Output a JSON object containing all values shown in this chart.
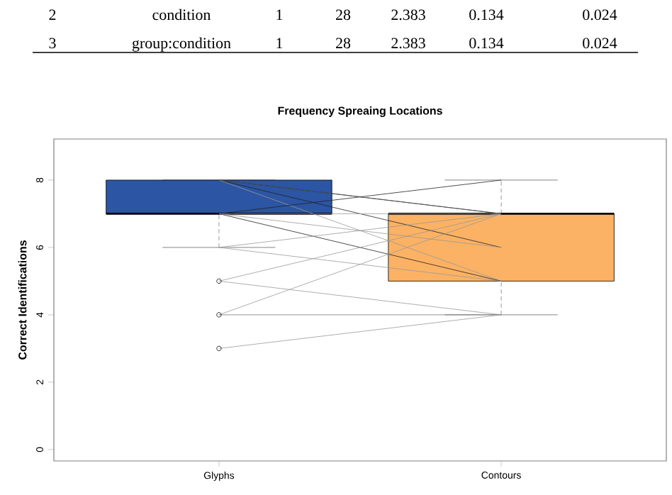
{
  "chart_data": {
    "type": "box",
    "title": "Frequency Spreaing Locations",
    "ylabel": "Correct Identifications",
    "categories": [
      "Glyphs",
      "Contours"
    ],
    "ylim": [
      -0.34,
      9.22
    ],
    "yticks": [
      0,
      2,
      4,
      6,
      8
    ],
    "boxes": [
      {
        "low": 6,
        "q1": 7,
        "median": 7,
        "q3": 8,
        "high": 8,
        "outliers": [
          5,
          4,
          3
        ]
      },
      {
        "low": 4,
        "q1": 5,
        "median": 7,
        "q3": 7,
        "high": 8
      }
    ],
    "colors": [
      "#2c55a3",
      "#fbb264"
    ],
    "series": [
      {
        "type": "line",
        "color": "#222222",
        "values": [
          8,
          7
        ]
      },
      {
        "type": "line",
        "color": "#222222",
        "values": [
          8,
          6
        ]
      },
      {
        "type": "line",
        "color": "#999999",
        "values": [
          8,
          5
        ]
      },
      {
        "type": "line",
        "color": "#555555",
        "values": [
          8,
          7
        ]
      },
      {
        "type": "line",
        "color": "#222222",
        "values": [
          7,
          8
        ]
      },
      {
        "type": "line",
        "color": "#222222",
        "values": [
          7,
          5
        ]
      },
      {
        "type": "line",
        "color": "#999999",
        "values": [
          7,
          6
        ]
      },
      {
        "type": "line",
        "color": "#999999",
        "values": [
          7,
          7
        ]
      },
      {
        "type": "line",
        "color": "#999999",
        "values": [
          6,
          7
        ]
      },
      {
        "type": "line",
        "color": "#999999",
        "values": [
          6,
          5
        ]
      },
      {
        "type": "line",
        "color": "#999999",
        "values": [
          5,
          7
        ]
      },
      {
        "type": "line",
        "color": "#999999",
        "values": [
          5,
          4
        ]
      },
      {
        "type": "line",
        "color": "#999999",
        "values": [
          4,
          7
        ]
      },
      {
        "type": "line",
        "color": "#777777",
        "values": [
          4,
          4
        ]
      },
      {
        "type": "line",
        "color": "#999999",
        "values": [
          3,
          4
        ]
      }
    ],
    "annotations": [
      "2",
      "condition",
      "1",
      "28",
      "2.383",
      "0.134",
      "0.024",
      "3",
      "group:condition",
      "1",
      "28",
      "2.383",
      "0.134",
      "0.024"
    ]
  }
}
